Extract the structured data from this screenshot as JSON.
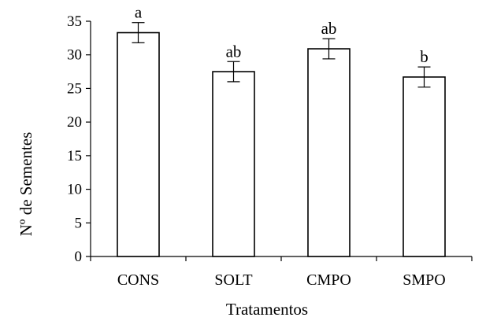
{
  "chart_data": {
    "type": "bar",
    "title": "",
    "xlabel": "Tratamentos",
    "ylabel": "Nº de Sementes",
    "categories": [
      "CONS",
      "SOLT",
      "CMPO",
      "SMPO"
    ],
    "values": [
      33.3,
      27.5,
      30.9,
      26.7
    ],
    "error": [
      1.5,
      1.5,
      1.5,
      1.5
    ],
    "significance": [
      "a",
      "ab",
      "ab",
      "b"
    ],
    "ylim": [
      0,
      35
    ],
    "yticks": [
      0,
      5,
      10,
      15,
      20,
      25,
      30,
      35
    ],
    "grid": false,
    "legend": "none",
    "colors": {
      "bar_fill": "#ffffff",
      "bar_stroke": "#000000",
      "axis": "#000000"
    }
  }
}
